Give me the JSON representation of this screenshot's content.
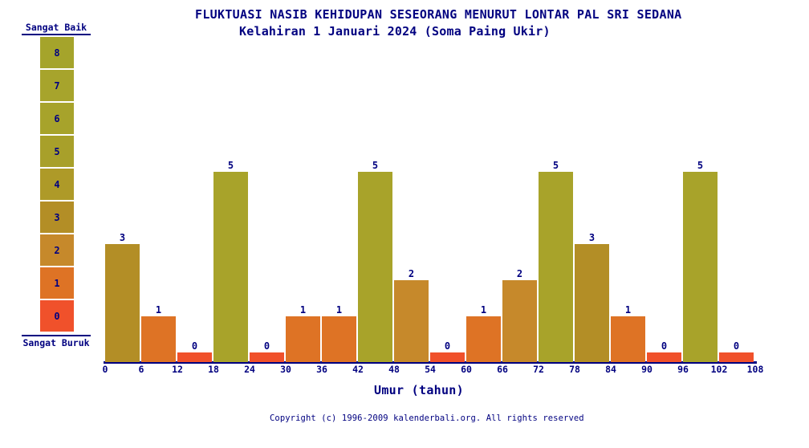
{
  "header": {
    "title": "FLUKTUASI NASIB KEHIDUPAN SESEORANG MENURUT LONTAR PAL SRI SEDANA",
    "subtitle": "Kelahiran 1 Januari 2024 (Soma Paing Ukir)"
  },
  "legend": {
    "top_label": "Sangat Baik",
    "bottom_label": "Sangat Buruk",
    "items": [
      {
        "value": "8",
        "color": "#a5a42b"
      },
      {
        "value": "7",
        "color": "#a7a42c"
      },
      {
        "value": "6",
        "color": "#a7a32b"
      },
      {
        "value": "5",
        "color": "#a8a02a"
      },
      {
        "value": "4",
        "color": "#ae9a28"
      },
      {
        "value": "3",
        "color": "#b38e26"
      },
      {
        "value": "2",
        "color": "#c6892b"
      },
      {
        "value": "1",
        "color": "#de7325"
      },
      {
        "value": "0",
        "color": "#f0512b"
      }
    ]
  },
  "chart_data": {
    "type": "bar",
    "title": "FLUKTUASI NASIB KEHIDUPAN SESEORANG MENURUT LONTAR PAL SRI SEDANA",
    "subtitle": "Kelahiran 1 Januari 2024 (Soma Paing Ukir)",
    "xlabel": "Umur (tahun)",
    "ylabel": "",
    "ylim": [
      0,
      8
    ],
    "grid": false,
    "legend_position": "left-scale",
    "x_bin_size": 6,
    "x_ticks": [
      0,
      6,
      12,
      18,
      24,
      30,
      36,
      42,
      48,
      54,
      60,
      66,
      72,
      78,
      84,
      90,
      96,
      102,
      108
    ],
    "age_ranges": [
      "0-6",
      "6-12",
      "12-18",
      "18-24",
      "24-30",
      "30-36",
      "36-42",
      "42-48",
      "48-54",
      "54-60",
      "60-66",
      "66-72",
      "72-78",
      "78-84",
      "84-90",
      "90-96",
      "96-102",
      "102-108"
    ],
    "values": [
      3,
      1,
      0,
      5,
      0,
      1,
      1,
      5,
      2,
      0,
      1,
      2,
      5,
      3,
      1,
      0,
      5,
      0
    ],
    "scale_best_label": "Sangat Baik",
    "scale_worst_label": "Sangat Buruk",
    "color_scale": {
      "0": "#f0512b",
      "1": "#de7325",
      "2": "#c6892b",
      "3": "#b38e26",
      "4": "#ae9a28",
      "5": "#a8a32a",
      "6": "#a7a32b",
      "7": "#a7a42c",
      "8": "#a5a42b"
    },
    "text_color": "#000080"
  },
  "footer": {
    "copyright": "Copyright (c) 1996-2009 kalenderbali.org. All rights reserved"
  }
}
